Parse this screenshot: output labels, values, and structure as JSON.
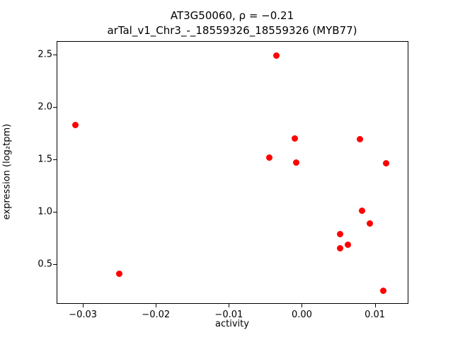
{
  "chart_data": {
    "type": "scatter",
    "title_line1": "AT3G50060, ρ = −0.21",
    "title_line2": "arTal_v1_Chr3_-_18559326_18559326 (MYB77)",
    "xlabel": "activity",
    "ylabel": "expression (log₂tpm)",
    "xlim": [
      -0.0335,
      0.0145
    ],
    "ylim": [
      0.13,
      2.62
    ],
    "xticks": [
      -0.03,
      -0.02,
      -0.01,
      0.0,
      0.01
    ],
    "xtick_labels": [
      "−0.03",
      "−0.02",
      "−0.01",
      "0.00",
      "0.01"
    ],
    "yticks": [
      0.5,
      1.0,
      1.5,
      2.0,
      2.5
    ],
    "ytick_labels": [
      "0.5",
      "1.0",
      "1.5",
      "2.0",
      "2.5"
    ],
    "marker_color": "#ff0000",
    "grid": false,
    "legend": "none",
    "points": [
      [
        -0.031,
        1.83
      ],
      [
        -0.025,
        0.41
      ],
      [
        -0.0035,
        2.49
      ],
      [
        -0.0045,
        1.52
      ],
      [
        -0.001,
        1.7
      ],
      [
        -0.0008,
        1.47
      ],
      [
        0.008,
        1.69
      ],
      [
        0.0115,
        1.46
      ],
      [
        0.0082,
        1.01
      ],
      [
        0.0093,
        0.89
      ],
      [
        0.0052,
        0.79
      ],
      [
        0.0052,
        0.65
      ],
      [
        0.0063,
        0.69
      ],
      [
        0.0112,
        0.25
      ]
    ]
  }
}
